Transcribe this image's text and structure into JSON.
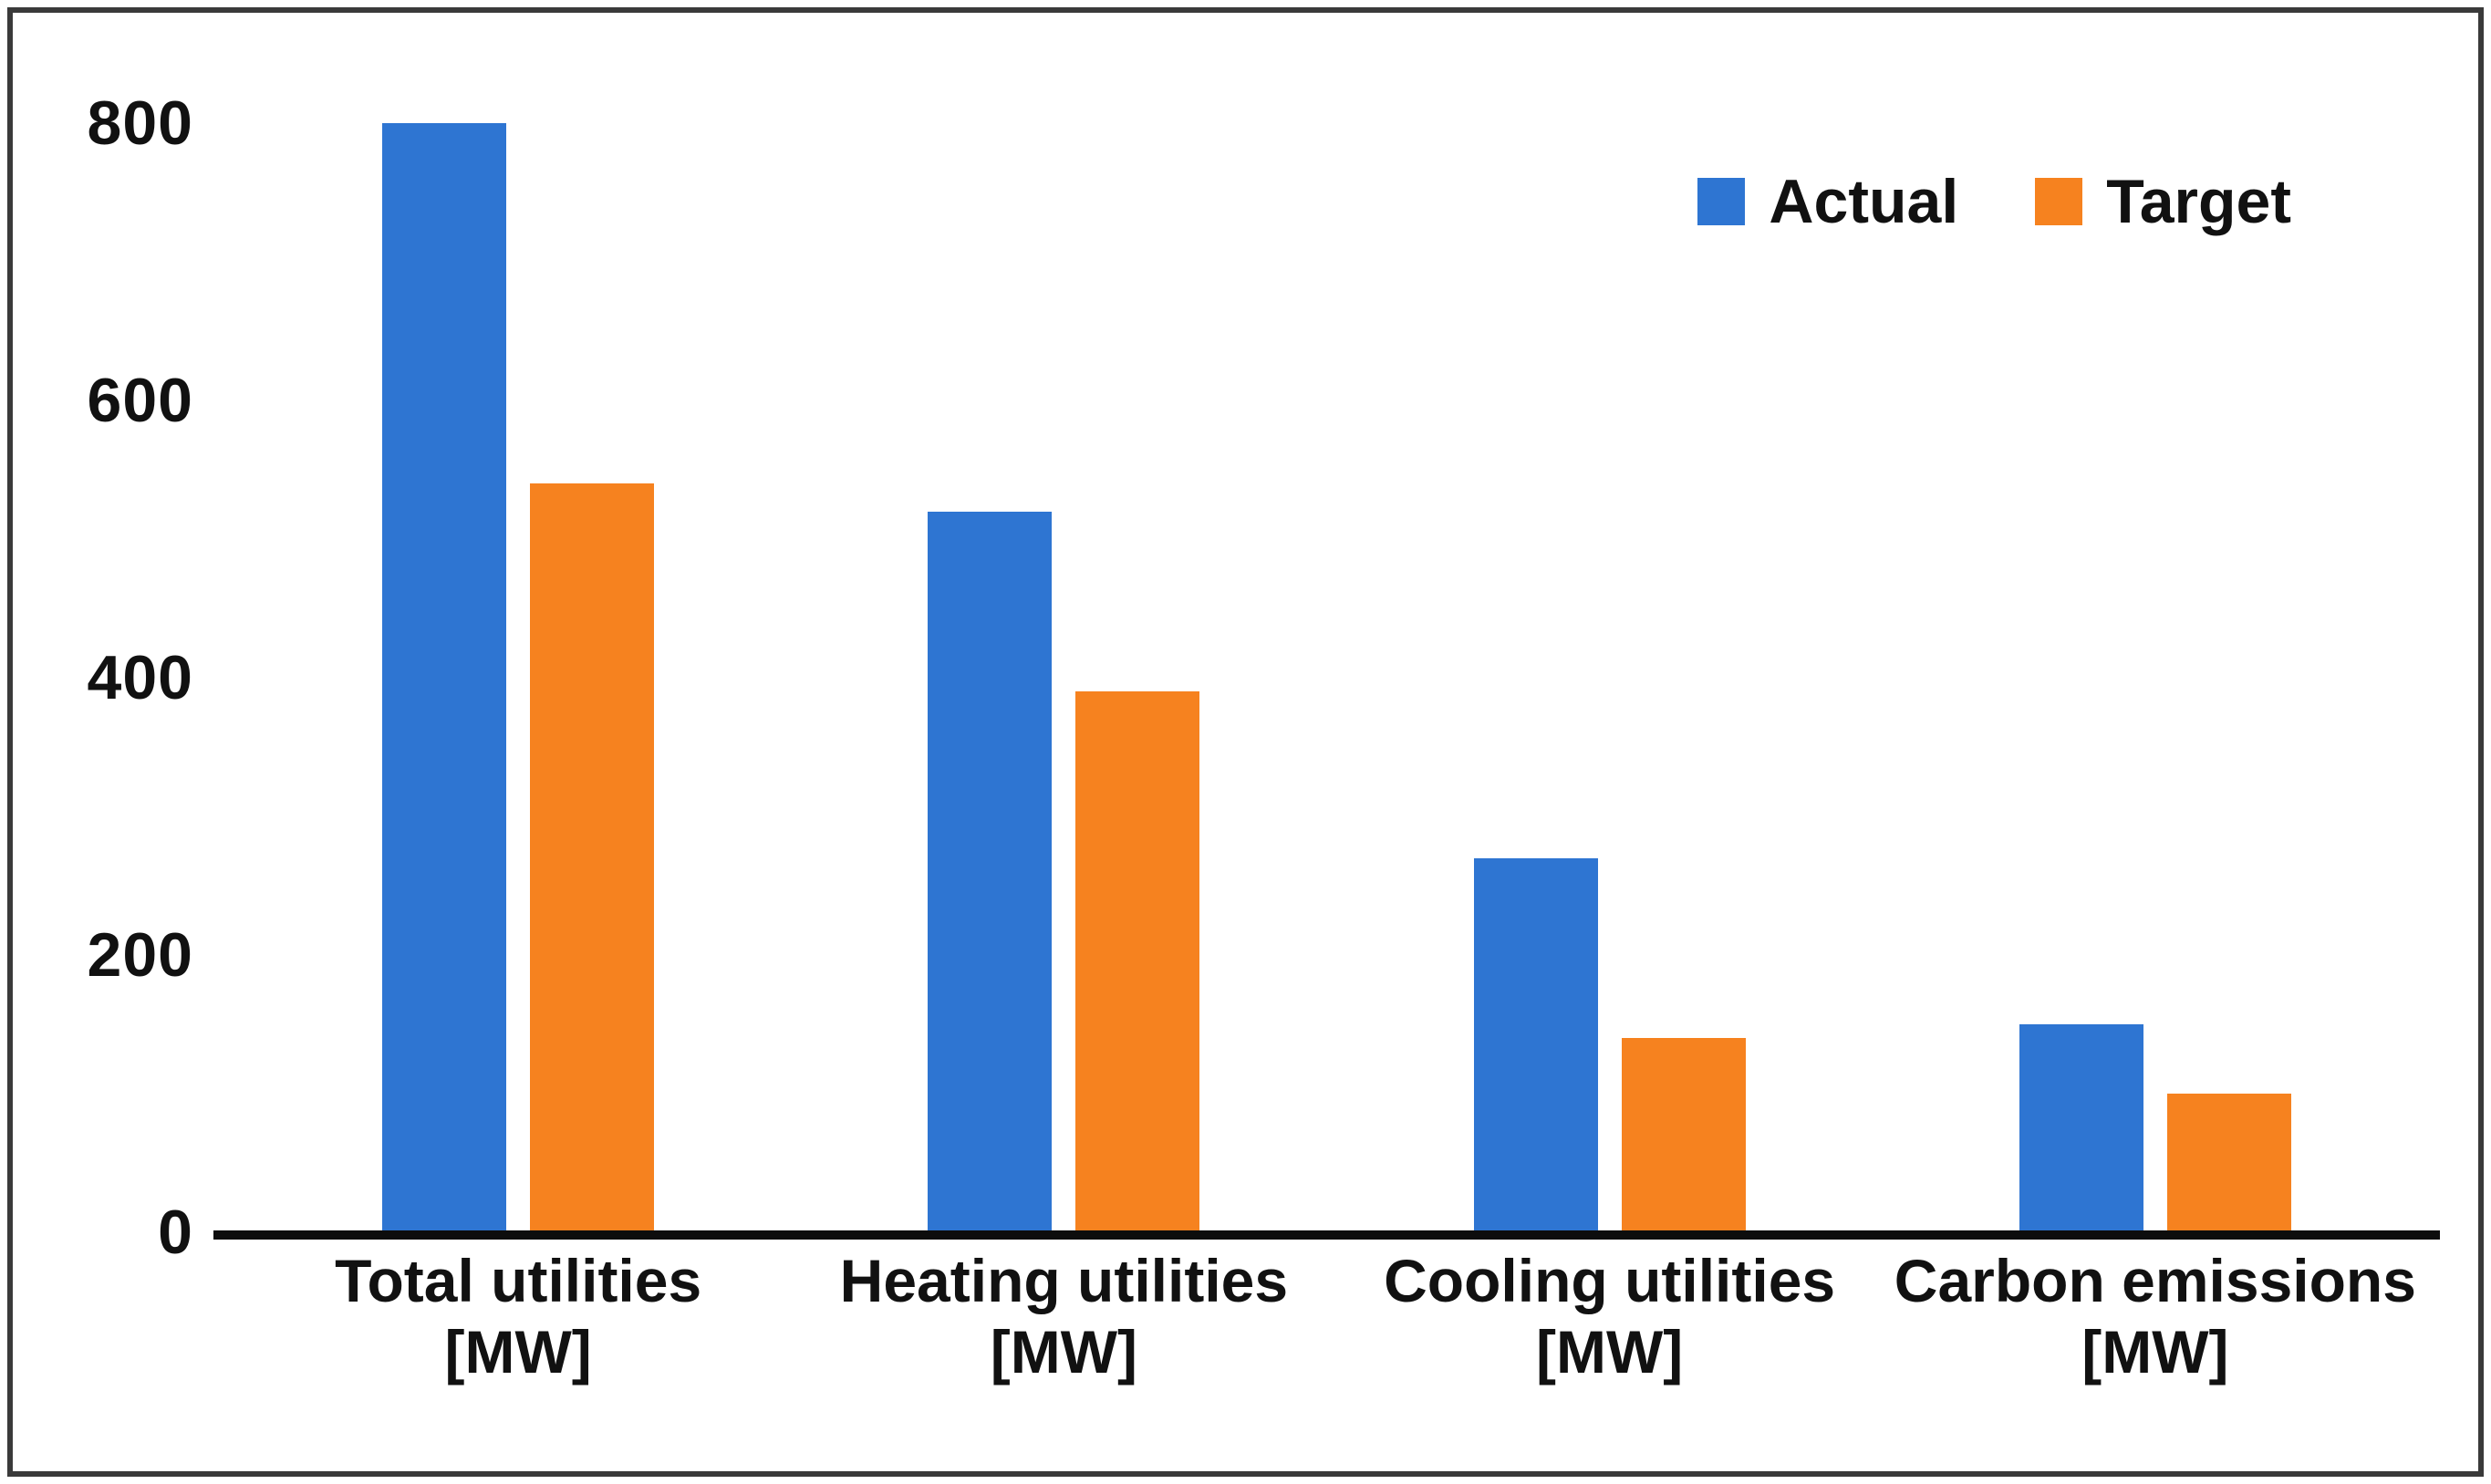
{
  "chart_data": {
    "type": "bar",
    "title": "",
    "xlabel": "",
    "ylabel": "",
    "categories": [
      "Total utilities",
      "Heating utilities",
      "Cooling utilities",
      "Carbon emissions"
    ],
    "category_unit": "[MW]",
    "series": [
      {
        "name": "Actual",
        "color": "#2E75D2",
        "values": [
          800,
          520,
          270,
          150
        ]
      },
      {
        "name": "Target",
        "color": "#F6821F",
        "values": [
          540,
          390,
          140,
          100
        ]
      }
    ],
    "ylim": [
      0,
      800
    ],
    "yticks": [
      0,
      200,
      400,
      600,
      800
    ],
    "grid": false,
    "legend_position": "top-right"
  },
  "colors": {
    "axis": "#0d0d0d",
    "frame": "#3a3a3a",
    "background": "#ffffff",
    "text": "#111111"
  }
}
